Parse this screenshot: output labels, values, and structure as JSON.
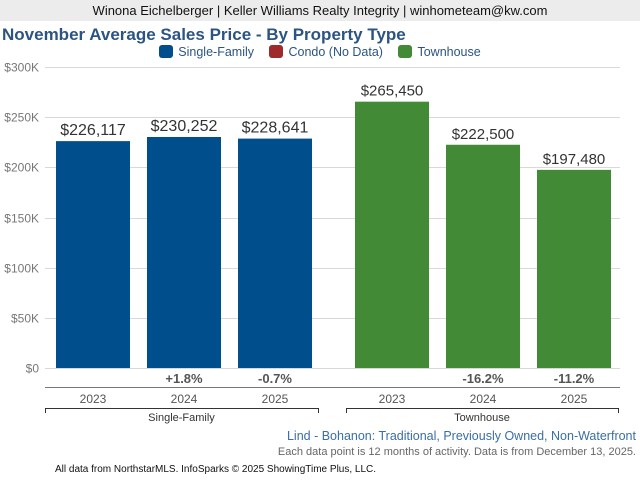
{
  "header": {
    "agent_line": "Winona Eichelberger | Keller Williams Realty Integrity | winhometeam@kw.com"
  },
  "legend": [
    {
      "label": "Single-Family",
      "color": "#004e8c"
    },
    {
      "label": "Condo (No Data)",
      "color": "#9e2a2b"
    },
    {
      "label": "Townhouse",
      "color": "#438a36"
    }
  ],
  "footer": {
    "area": "Lind - Bohanon: Traditional, Previously Owned, Non-Waterfront",
    "note": "Each data point is 12 months of activity. Data is from December 13, 2025.",
    "credit": "All data from NorthstarMLS. InfoSparks © 2025 ShowingTime Plus, LLC."
  },
  "chart_data": {
    "type": "bar",
    "title": "November Average Sales Price - By Property Type",
    "xlabel": "",
    "ylabel": "",
    "ylim": [
      0,
      300000
    ],
    "yticks": [
      0,
      50000,
      100000,
      150000,
      200000,
      250000,
      300000
    ],
    "ytick_labels": [
      "$0",
      "$50K",
      "$100K",
      "$150K",
      "$200K",
      "$250K",
      "$300K"
    ],
    "grid": true,
    "legend_position": "top-center",
    "groups": [
      {
        "name": "Single-Family",
        "color": "#004e8c",
        "categories": [
          "2023",
          "2024",
          "2025"
        ],
        "values": [
          226117,
          230252,
          228641
        ],
        "value_labels": [
          "$226,117",
          "$230,252",
          "$228,641"
        ],
        "pct_change": [
          "",
          "+1.8%",
          "-0.7%"
        ]
      },
      {
        "name": "Townhouse",
        "color": "#438a36",
        "categories": [
          "2023",
          "2024",
          "2025"
        ],
        "values": [
          265450,
          222500,
          197480
        ],
        "value_labels": [
          "$265,450",
          "$222,500",
          "$197,480"
        ],
        "pct_change": [
          "",
          "-16.2%",
          "-11.2%"
        ]
      }
    ]
  }
}
